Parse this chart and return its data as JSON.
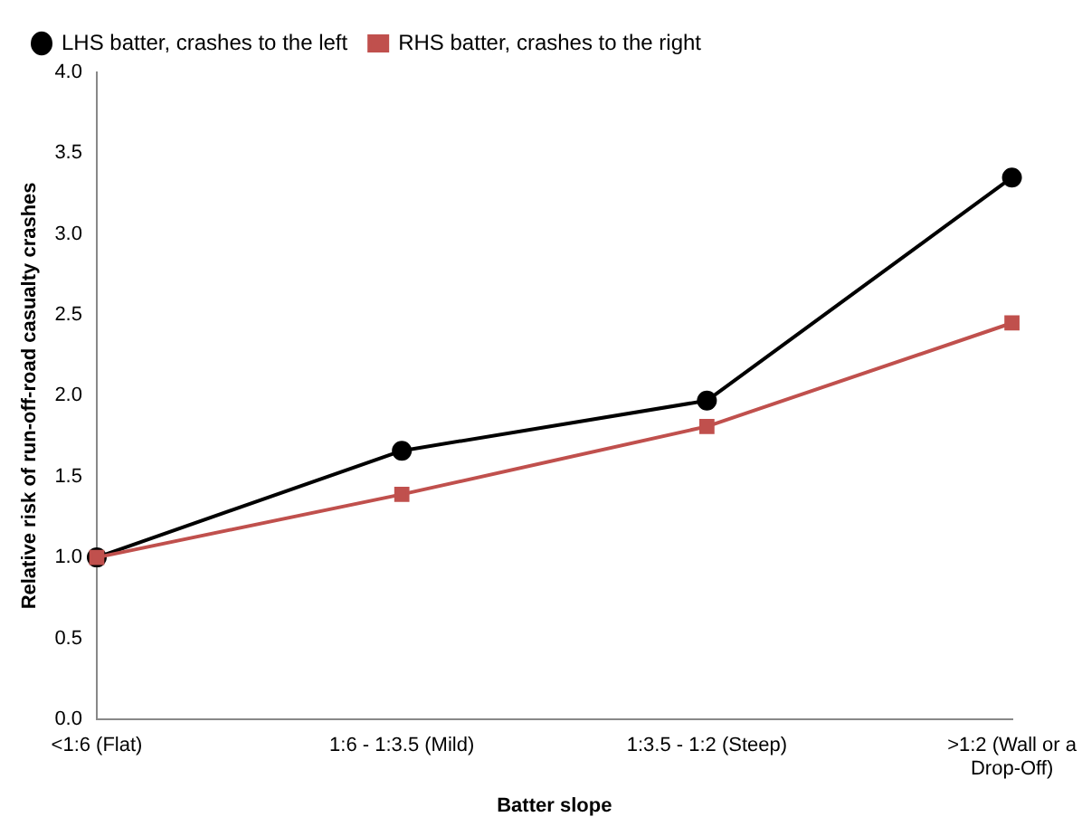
{
  "chart_data": {
    "type": "line",
    "xlabel": "Batter slope",
    "ylabel": "Relative risk of run-off-road casualty crashes",
    "categories": [
      "<1:6 (Flat)",
      "1:6 - 1:3.5 (Mild)",
      "1:3.5 - 1:2 (Steep)",
      ">1:2 (Wall or a Drop-Off)"
    ],
    "series": [
      {
        "name": "LHS batter, crashes to the left",
        "color": "#000000",
        "marker": "circle",
        "values": [
          1.0,
          1.66,
          1.97,
          3.35
        ]
      },
      {
        "name": "RHS batter, crashes to the right",
        "color": "#c0504d",
        "marker": "square",
        "values": [
          1.0,
          1.39,
          1.81,
          2.45
        ]
      }
    ],
    "ylim": [
      0,
      4
    ],
    "yticks": [
      {
        "value": 0,
        "label": "0.0"
      },
      {
        "value": 0.5,
        "label": "0.5"
      },
      {
        "value": 1,
        "label": "1.0"
      },
      {
        "value": 1.5,
        "label": "1.5"
      },
      {
        "value": 2,
        "label": "2.0"
      },
      {
        "value": 2.5,
        "label": "2.5"
      },
      {
        "value": 3,
        "label": "3.0"
      },
      {
        "value": 3.5,
        "label": "3.5"
      },
      {
        "value": 4,
        "label": "4.0"
      }
    ],
    "grid": false,
    "legend": "top left",
    "line_style": "solid"
  }
}
